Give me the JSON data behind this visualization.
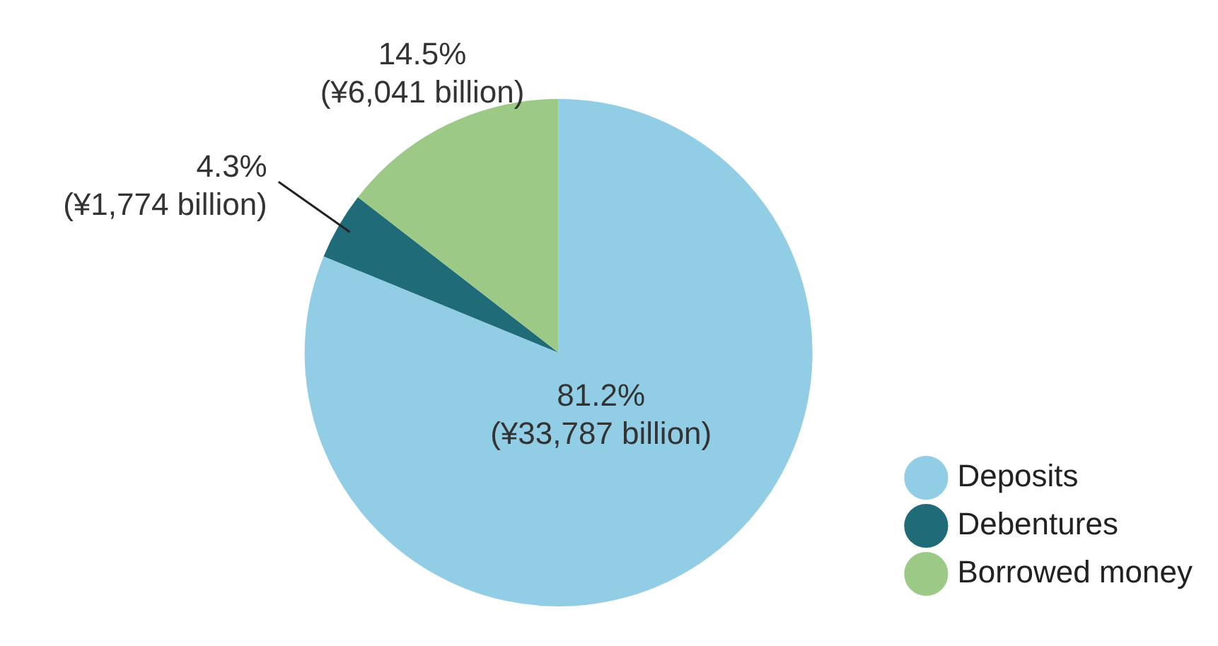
{
  "chart_data": {
    "type": "pie",
    "categories": [
      "Deposits",
      "Debentures",
      "Borrowed money"
    ],
    "values": [
      81.2,
      4.3,
      14.5
    ],
    "colors": [
      "#92cde6",
      "#1f6b78",
      "#9dc986"
    ],
    "value_labels": [
      "81.2%\n(¥33,787 billion)",
      "4.3%\n(¥1,774 billion)",
      "14.5%\n(¥6,041 billion)"
    ],
    "legend": "bottom right"
  }
}
